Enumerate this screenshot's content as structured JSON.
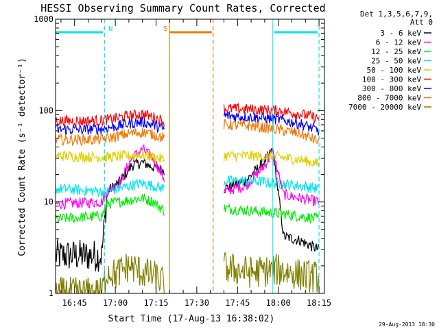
{
  "chart_data": {
    "type": "line",
    "title": "HESSI Observing Summary Count Rates, Corrected",
    "xlabel": "Start Time (17-Aug-13 16:38:02)",
    "ylabel": "Corrected Count Rate (s⁻¹ detector⁻¹)",
    "yscale": "log",
    "ylim": [
      1,
      1000
    ],
    "xlim": [
      "16:38",
      "18:17"
    ],
    "x_ticks": [
      "16:45",
      "17:00",
      "17:15",
      "17:30",
      "17:45",
      "18:00",
      "18:15"
    ],
    "y_ticks": [
      "1",
      "10",
      "100",
      "1000"
    ],
    "legend_header": [
      "Det 1,3,5,6,7,9,",
      "Att 0"
    ],
    "legend_placement": "right",
    "timestamp": "29-Aug-2013 18:30",
    "gaps": [
      [
        "17:18",
        "17:40"
      ]
    ],
    "annotations": [
      {
        "label": "N",
        "kind": "night",
        "start": "16:38",
        "end": "16:56",
        "color": "#00e5ee",
        "dashed_end": true
      },
      {
        "label": "S",
        "kind": "saa",
        "start": "17:20",
        "end": "17:36",
        "color": "#f07800",
        "dashed_end": true
      },
      {
        "label": "",
        "kind": "night",
        "start": "17:58",
        "end": "18:15",
        "color": "#00e5ee",
        "dashed_end": true
      }
    ],
    "series": [
      {
        "name": "3 - 6 keV",
        "color": "#000000",
        "x": [
          "16:38",
          "16:55",
          "16:57",
          "17:02",
          "17:06",
          "17:10",
          "17:14",
          "17:18",
          "17:40",
          "17:48",
          "17:55",
          "17:58",
          "18:02",
          "18:08",
          "18:15"
        ],
        "y": [
          2.6,
          2.6,
          13,
          17,
          25,
          27,
          24,
          22,
          14,
          17,
          28,
          37,
          4.2,
          3.8,
          3.0
        ]
      },
      {
        "name": "6 - 12 keV",
        "color": "#ff00ff",
        "x": [
          "16:38",
          "16:55",
          "16:57",
          "17:02",
          "17:06",
          "17:10",
          "17:14",
          "17:18",
          "17:40",
          "17:48",
          "17:55",
          "17:58",
          "18:02",
          "18:08",
          "18:15"
        ],
        "y": [
          9.5,
          10,
          13,
          17,
          30,
          38,
          30,
          18,
          13,
          15,
          25,
          35,
          12,
          11,
          10
        ]
      },
      {
        "name": "12 - 25 keV",
        "color": "#00ee00",
        "x": [
          "16:38",
          "16:55",
          "16:57",
          "17:05",
          "17:10",
          "17:14",
          "17:18",
          "17:40",
          "17:50",
          "18:00",
          "18:08",
          "18:15"
        ],
        "y": [
          6.5,
          7,
          9.5,
          10.5,
          11,
          10,
          8,
          8.5,
          8,
          7.5,
          7,
          6.5
        ]
      },
      {
        "name": "25 - 50 keV",
        "color": "#00e5ee",
        "x": [
          "16:38",
          "16:55",
          "16:57",
          "17:05",
          "17:10",
          "17:14",
          "17:18",
          "17:40",
          "17:50",
          "18:00",
          "18:08",
          "18:15"
        ],
        "y": [
          14,
          13,
          13,
          15,
          16,
          15,
          14,
          17,
          17,
          16,
          15,
          14
        ]
      },
      {
        "name": "50 - 100 keV",
        "color": "#e0d000",
        "x": [
          "16:38",
          "16:55",
          "16:57",
          "17:05",
          "17:10",
          "17:14",
          "17:18",
          "17:40",
          "17:50",
          "18:00",
          "18:08",
          "18:15"
        ],
        "y": [
          32,
          31,
          31,
          32,
          33,
          31,
          29,
          32,
          32,
          31,
          29,
          26
        ]
      },
      {
        "name": "100 - 300 keV",
        "color": "#ff0000",
        "x": [
          "16:38",
          "16:48",
          "16:55",
          "17:00",
          "17:05",
          "17:10",
          "17:14",
          "17:18",
          "17:40",
          "17:50",
          "18:00",
          "18:08",
          "18:15"
        ],
        "y": [
          77,
          77,
          78,
          82,
          88,
          92,
          85,
          76,
          105,
          103,
          100,
          92,
          82
        ]
      },
      {
        "name": "300 - 800 keV",
        "color": "#0000ff",
        "x": [
          "16:38",
          "16:48",
          "16:55",
          "17:00",
          "17:05",
          "17:10",
          "17:14",
          "17:18",
          "17:40",
          "17:50",
          "18:00",
          "18:08",
          "18:15"
        ],
        "y": [
          62,
          62,
          63,
          67,
          72,
          75,
          70,
          62,
          88,
          85,
          80,
          72,
          60
        ]
      },
      {
        "name": "800 - 7000 keV",
        "color": "#f07800",
        "x": [
          "16:38",
          "16:48",
          "16:55",
          "17:00",
          "17:05",
          "17:10",
          "17:14",
          "17:18",
          "17:40",
          "17:50",
          "18:00",
          "18:08",
          "18:15"
        ],
        "y": [
          48,
          48,
          48,
          52,
          56,
          58,
          55,
          50,
          70,
          68,
          62,
          56,
          46
        ]
      },
      {
        "name": "7000 - 20000 keV",
        "color": "#808000",
        "x": [
          "16:38",
          "16:55",
          "16:57",
          "17:00",
          "17:05",
          "17:10",
          "17:15",
          "17:18",
          "17:40",
          "17:50",
          "18:00",
          "18:08",
          "18:15"
        ],
        "y": [
          1,
          1,
          1.8,
          1.6,
          2,
          1.7,
          1.5,
          1.3,
          1.9,
          1.7,
          1.8,
          1.6,
          1.5
        ]
      }
    ]
  }
}
